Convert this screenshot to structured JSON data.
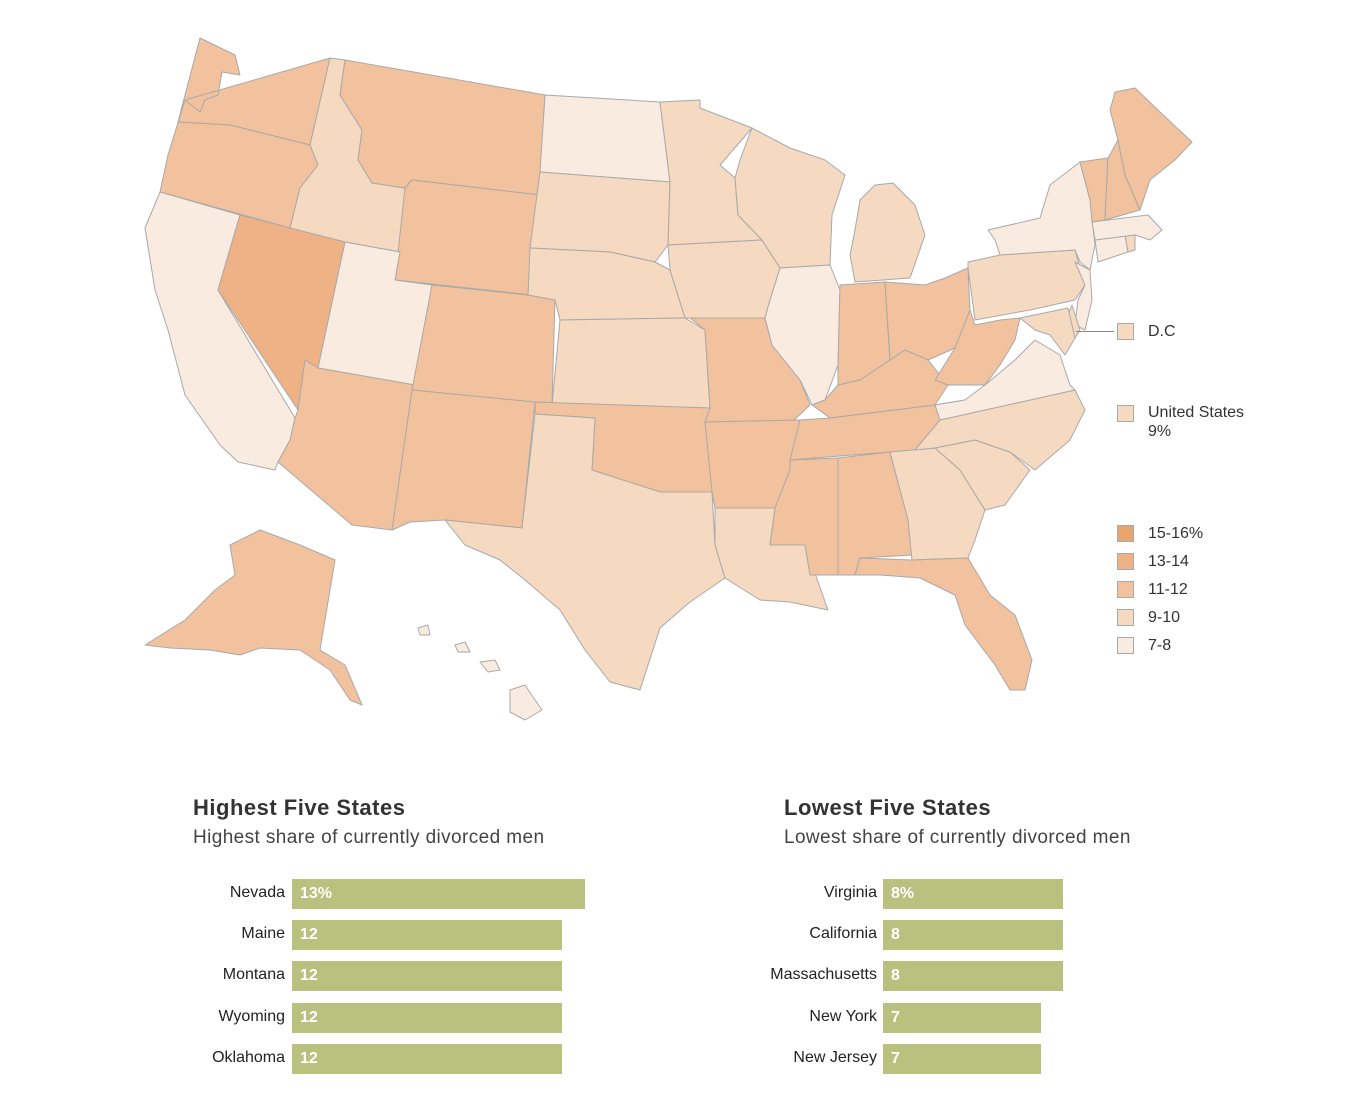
{
  "colors": {
    "c15_16": "#e9a56f",
    "c13_14": "#efb287",
    "c11_12": "#f1c29d",
    "c9_10": "#f5d9c0",
    "c7_8": "#f9ebdf",
    "bar": "#b8c17e",
    "border": "#a9a9a9"
  },
  "map": {
    "states": [
      {
        "id": "WA",
        "bin": "c11_12"
      },
      {
        "id": "OR",
        "bin": "c11_12"
      },
      {
        "id": "CA",
        "bin": "c7_8"
      },
      {
        "id": "NV",
        "bin": "c13_14"
      },
      {
        "id": "ID",
        "bin": "c9_10"
      },
      {
        "id": "MT",
        "bin": "c11_12"
      },
      {
        "id": "WY",
        "bin": "c11_12"
      },
      {
        "id": "UT",
        "bin": "c7_8"
      },
      {
        "id": "AZ",
        "bin": "c11_12"
      },
      {
        "id": "CO",
        "bin": "c11_12"
      },
      {
        "id": "NM",
        "bin": "c11_12"
      },
      {
        "id": "ND",
        "bin": "c7_8"
      },
      {
        "id": "SD",
        "bin": "c9_10"
      },
      {
        "id": "NE",
        "bin": "c9_10"
      },
      {
        "id": "KS",
        "bin": "c9_10"
      },
      {
        "id": "OK",
        "bin": "c11_12"
      },
      {
        "id": "TX",
        "bin": "c9_10"
      },
      {
        "id": "MN",
        "bin": "c9_10"
      },
      {
        "id": "IA",
        "bin": "c9_10"
      },
      {
        "id": "MO",
        "bin": "c11_12"
      },
      {
        "id": "AR",
        "bin": "c11_12"
      },
      {
        "id": "LA",
        "bin": "c9_10"
      },
      {
        "id": "WI",
        "bin": "c9_10"
      },
      {
        "id": "IL",
        "bin": "c7_8"
      },
      {
        "id": "MI",
        "bin": "c9_10"
      },
      {
        "id": "IN",
        "bin": "c11_12"
      },
      {
        "id": "OH",
        "bin": "c11_12"
      },
      {
        "id": "KY",
        "bin": "c11_12"
      },
      {
        "id": "TN",
        "bin": "c11_12"
      },
      {
        "id": "MS",
        "bin": "c11_12"
      },
      {
        "id": "AL",
        "bin": "c11_12"
      },
      {
        "id": "GA",
        "bin": "c9_10"
      },
      {
        "id": "FL",
        "bin": "c11_12"
      },
      {
        "id": "SC",
        "bin": "c9_10"
      },
      {
        "id": "NC",
        "bin": "c9_10"
      },
      {
        "id": "VA",
        "bin": "c7_8"
      },
      {
        "id": "WV",
        "bin": "c11_12"
      },
      {
        "id": "PA",
        "bin": "c9_10"
      },
      {
        "id": "NY",
        "bin": "c7_8"
      },
      {
        "id": "NJ",
        "bin": "c7_8"
      },
      {
        "id": "DE",
        "bin": "c9_10"
      },
      {
        "id": "MD",
        "bin": "c9_10"
      },
      {
        "id": "CT",
        "bin": "c7_8"
      },
      {
        "id": "RI",
        "bin": "c9_10"
      },
      {
        "id": "MA",
        "bin": "c7_8"
      },
      {
        "id": "VT",
        "bin": "c11_12"
      },
      {
        "id": "NH",
        "bin": "c11_12"
      },
      {
        "id": "ME",
        "bin": "c11_12"
      },
      {
        "id": "AK",
        "bin": "c11_12"
      },
      {
        "id": "HI",
        "bin": "c7_8"
      }
    ]
  },
  "legend": {
    "dc_label": "D.C",
    "dc_bin": "c9_10",
    "us_label": "United States",
    "us_value": "9%",
    "us_bin": "c9_10",
    "bins": [
      {
        "label": "15-16%",
        "bin": "c15_16"
      },
      {
        "label": "13-14",
        "bin": "c13_14"
      },
      {
        "label": "11-12",
        "bin": "c11_12"
      },
      {
        "label": "9-10",
        "bin": "c9_10"
      },
      {
        "label": "7-8",
        "bin": "c7_8"
      }
    ]
  },
  "highest": {
    "title": "Highest Five States",
    "subtitle": "Highest share of currently divorced men",
    "rows": [
      {
        "state": "Nevada",
        "value": 13,
        "display": "13%"
      },
      {
        "state": "Maine",
        "value": 12,
        "display": "12"
      },
      {
        "state": "Montana",
        "value": 12,
        "display": "12"
      },
      {
        "state": "Wyoming",
        "value": 12,
        "display": "12"
      },
      {
        "state": "Oklahoma",
        "value": 12,
        "display": "12"
      }
    ]
  },
  "lowest": {
    "title": "Lowest Five States",
    "subtitle": "Lowest share of currently divorced men",
    "rows": [
      {
        "state": "Virginia",
        "value": 8,
        "display": "8%"
      },
      {
        "state": "California",
        "value": 8,
        "display": "8"
      },
      {
        "state": "Massachusetts",
        "value": 8,
        "display": "8"
      },
      {
        "state": "New York",
        "value": 7,
        "display": "7"
      },
      {
        "state": "New Jersey",
        "value": 7,
        "display": "7"
      }
    ]
  }
}
